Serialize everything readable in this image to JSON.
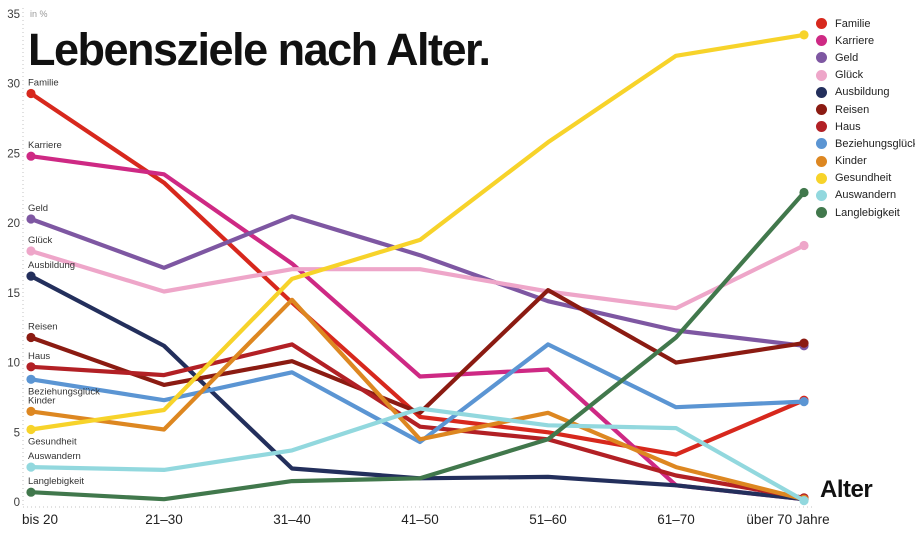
{
  "title": "Lebensziele nach Alter.",
  "y_axis": {
    "unit_label": "in %",
    "ticks": [
      35,
      30,
      25,
      20,
      15,
      10,
      5,
      0
    ]
  },
  "x_axis": {
    "title": "Alter"
  },
  "chart_data": {
    "type": "line",
    "title": "Lebensziele nach Alter.",
    "categories": [
      "bis 20",
      "21–30",
      "31–40",
      "41–50",
      "51–60",
      "61–70",
      "über 70 Jahre"
    ],
    "xlabel": "Alter",
    "ylabel": "in %",
    "ylim": [
      0,
      35
    ],
    "grid": false,
    "legend_position": "top-right",
    "series": [
      {
        "name": "Familie",
        "color": "#d7281d",
        "values": [
          29.3,
          22.9,
          14.3,
          6.1,
          5.0,
          3.4,
          7.3
        ]
      },
      {
        "name": "Karriere",
        "color": "#ce2984",
        "values": [
          24.8,
          23.5,
          17.1,
          9.0,
          9.5,
          1.2,
          0.2
        ]
      },
      {
        "name": "Geld",
        "color": "#7e57a2",
        "values": [
          20.3,
          16.8,
          20.5,
          17.7,
          14.4,
          12.3,
          11.2
        ]
      },
      {
        "name": "Glück",
        "color": "#eea6c9",
        "values": [
          18.0,
          15.1,
          16.7,
          16.7,
          15.1,
          13.9,
          18.4
        ]
      },
      {
        "name": "Ausbildung",
        "color": "#232f5c",
        "values": [
          16.2,
          11.2,
          2.4,
          1.7,
          1.8,
          1.2,
          0.2
        ]
      },
      {
        "name": "Reisen",
        "color": "#8b1b12",
        "values": [
          11.8,
          8.4,
          10.1,
          6.4,
          15.2,
          10.0,
          11.4
        ]
      },
      {
        "name": "Haus",
        "color": "#b22025",
        "values": [
          9.7,
          9.1,
          11.3,
          5.4,
          4.5,
          1.9,
          0.3
        ]
      },
      {
        "name": "Beziehungsglück",
        "color": "#5b95d3",
        "values": [
          8.8,
          7.3,
          9.3,
          4.3,
          11.3,
          6.8,
          7.2
        ],
        "label_below": true
      },
      {
        "name": "Kinder",
        "color": "#dd8721",
        "values": [
          6.5,
          5.2,
          14.5,
          4.5,
          6.4,
          2.5,
          0.2
        ]
      },
      {
        "name": "Gesundheit",
        "color": "#f7d32a",
        "values": [
          5.2,
          6.6,
          16.0,
          18.8,
          25.8,
          32.0,
          33.5
        ],
        "label_below": true
      },
      {
        "name": "Auswandern",
        "color": "#92d8de",
        "values": [
          2.5,
          2.3,
          3.7,
          6.7,
          5.5,
          5.3,
          0.1
        ]
      },
      {
        "name": "Langlebigkeit",
        "color": "#41784c",
        "values": [
          0.7,
          0.2,
          1.5,
          1.7,
          4.5,
          11.8,
          22.2
        ]
      }
    ]
  }
}
